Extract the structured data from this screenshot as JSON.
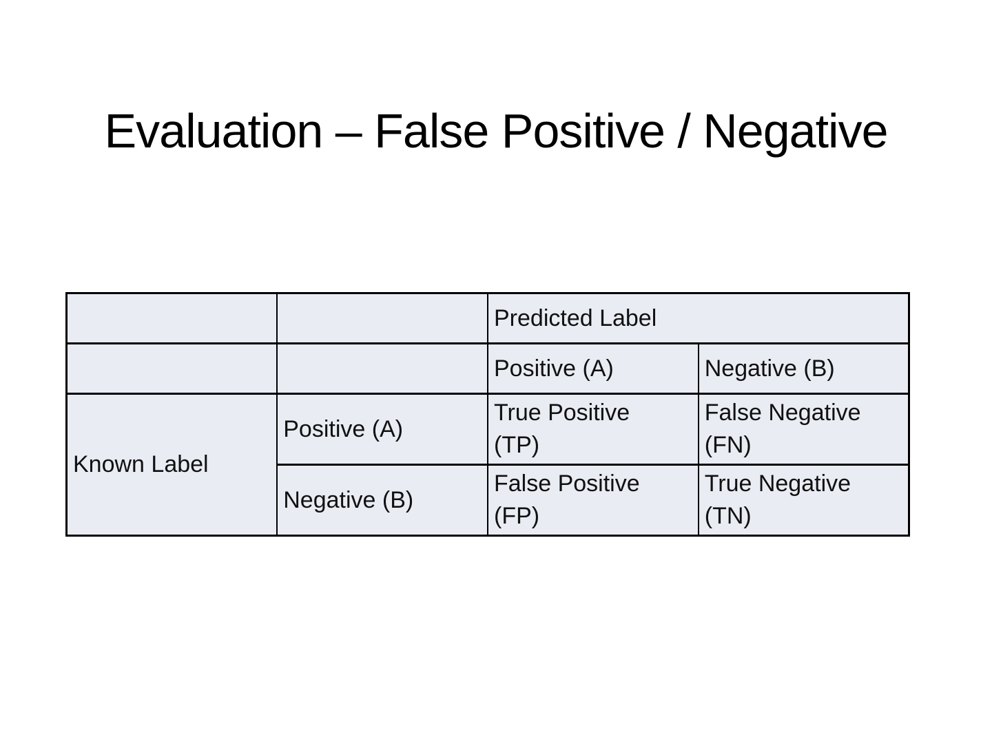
{
  "slide": {
    "title": "Evaluation – False Positive / Negative"
  },
  "matrix": {
    "predicted_axis_label": "Predicted Label",
    "known_axis_label": "Known Label",
    "predicted_headers": [
      "Positive (A)",
      "Negative (B)"
    ],
    "known_headers": [
      "Positive (A)",
      "Negative (B)"
    ],
    "cells": [
      [
        "True Positive\n(TP)",
        "False Negative\n(FN)"
      ],
      [
        "False Positive\n(FP)",
        "True Negative\n(TN)"
      ]
    ]
  },
  "colors": {
    "background": "#ffffff",
    "cell_fill": "#e9ecf3",
    "border": "#000000",
    "text": "#111111"
  }
}
